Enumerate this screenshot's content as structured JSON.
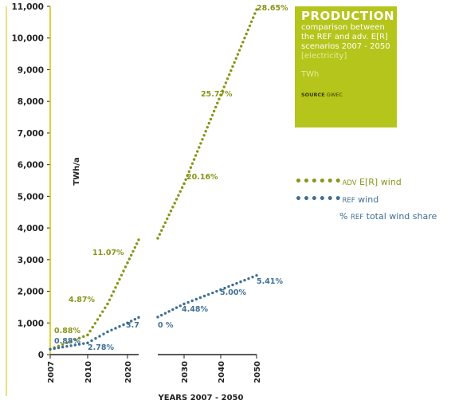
{
  "chart_data": {
    "type": "scatter",
    "title": "PRODUCTION",
    "subtitle_lines": [
      "comparison between",
      "the REF and adv. E[R]",
      "scenarios 2007 - 2050"
    ],
    "subtitle_extra": "[electricity]",
    "unit": "TWh",
    "source_label": "SOURCE",
    "source_value": "GWEC",
    "ylabel": "TWh/a",
    "xlabel": "YEARS 2007 - 2050",
    "ylim": [
      0,
      11000
    ],
    "y_ticks": [
      0,
      1000,
      2000,
      3000,
      4000,
      5000,
      6000,
      7000,
      8000,
      9000,
      10000,
      11000
    ],
    "y_tick_labels": [
      "0",
      "1,000",
      "2,000",
      "3,000",
      "4,000",
      "5,000",
      "6,000",
      "7,000",
      "8,000",
      "9,000",
      "10,000",
      "11,000"
    ],
    "x_ticks": [
      2007,
      2010,
      2020,
      2030,
      2040,
      2050
    ],
    "x_tick_labels": [
      "2007",
      "2010",
      "2020",
      "2030",
      "2040",
      "2050"
    ],
    "axis_break_between": [
      2020,
      2030
    ],
    "series": [
      {
        "name": "ADV E[R] wind",
        "color": "#8a9418",
        "points": [
          [
            2007,
            170
          ],
          [
            2010,
            620
          ],
          [
            2015,
            1600
          ],
          [
            2020,
            2900
          ],
          [
            2030,
            5400
          ],
          [
            2040,
            8200
          ],
          [
            2050,
            10900
          ]
        ]
      },
      {
        "name": "REF wind",
        "color": "#3f6f94",
        "points": [
          [
            2007,
            170
          ],
          [
            2010,
            370
          ],
          [
            2015,
            720
          ],
          [
            2020,
            1000
          ],
          [
            2030,
            1600
          ],
          [
            2040,
            2050
          ],
          [
            2050,
            2500
          ]
        ]
      }
    ],
    "share_labels_adv": [
      {
        "year": 2007,
        "text": "0.88%"
      },
      {
        "year": 2010,
        "text": "4.87%"
      },
      {
        "year": 2020,
        "text": "11.07%"
      },
      {
        "year": 2030,
        "text": "20.16%"
      },
      {
        "year": 2040,
        "text": "25.77%"
      },
      {
        "year": 2050,
        "text": "28.65%"
      }
    ],
    "share_labels_ref": [
      {
        "year": 2007,
        "text": "0.88%"
      },
      {
        "year": 2010,
        "text": "2.78%"
      },
      {
        "year": 2020,
        "text": "3.7"
      },
      {
        "year": 2030,
        "text": "0 %"
      },
      {
        "year": 2035,
        "text": "4.48%"
      },
      {
        "year": 2040,
        "text": "5.00%"
      },
      {
        "year": 2050,
        "text": "5.41%"
      }
    ],
    "legend": {
      "adv_prefix": "ADV",
      "adv_suffix": "E[R] wind",
      "ref_prefix": "REF",
      "ref_suffix": "wind",
      "share_prefix": "%",
      "share_sc": "REF",
      "share_suffix": "total wind share"
    }
  }
}
